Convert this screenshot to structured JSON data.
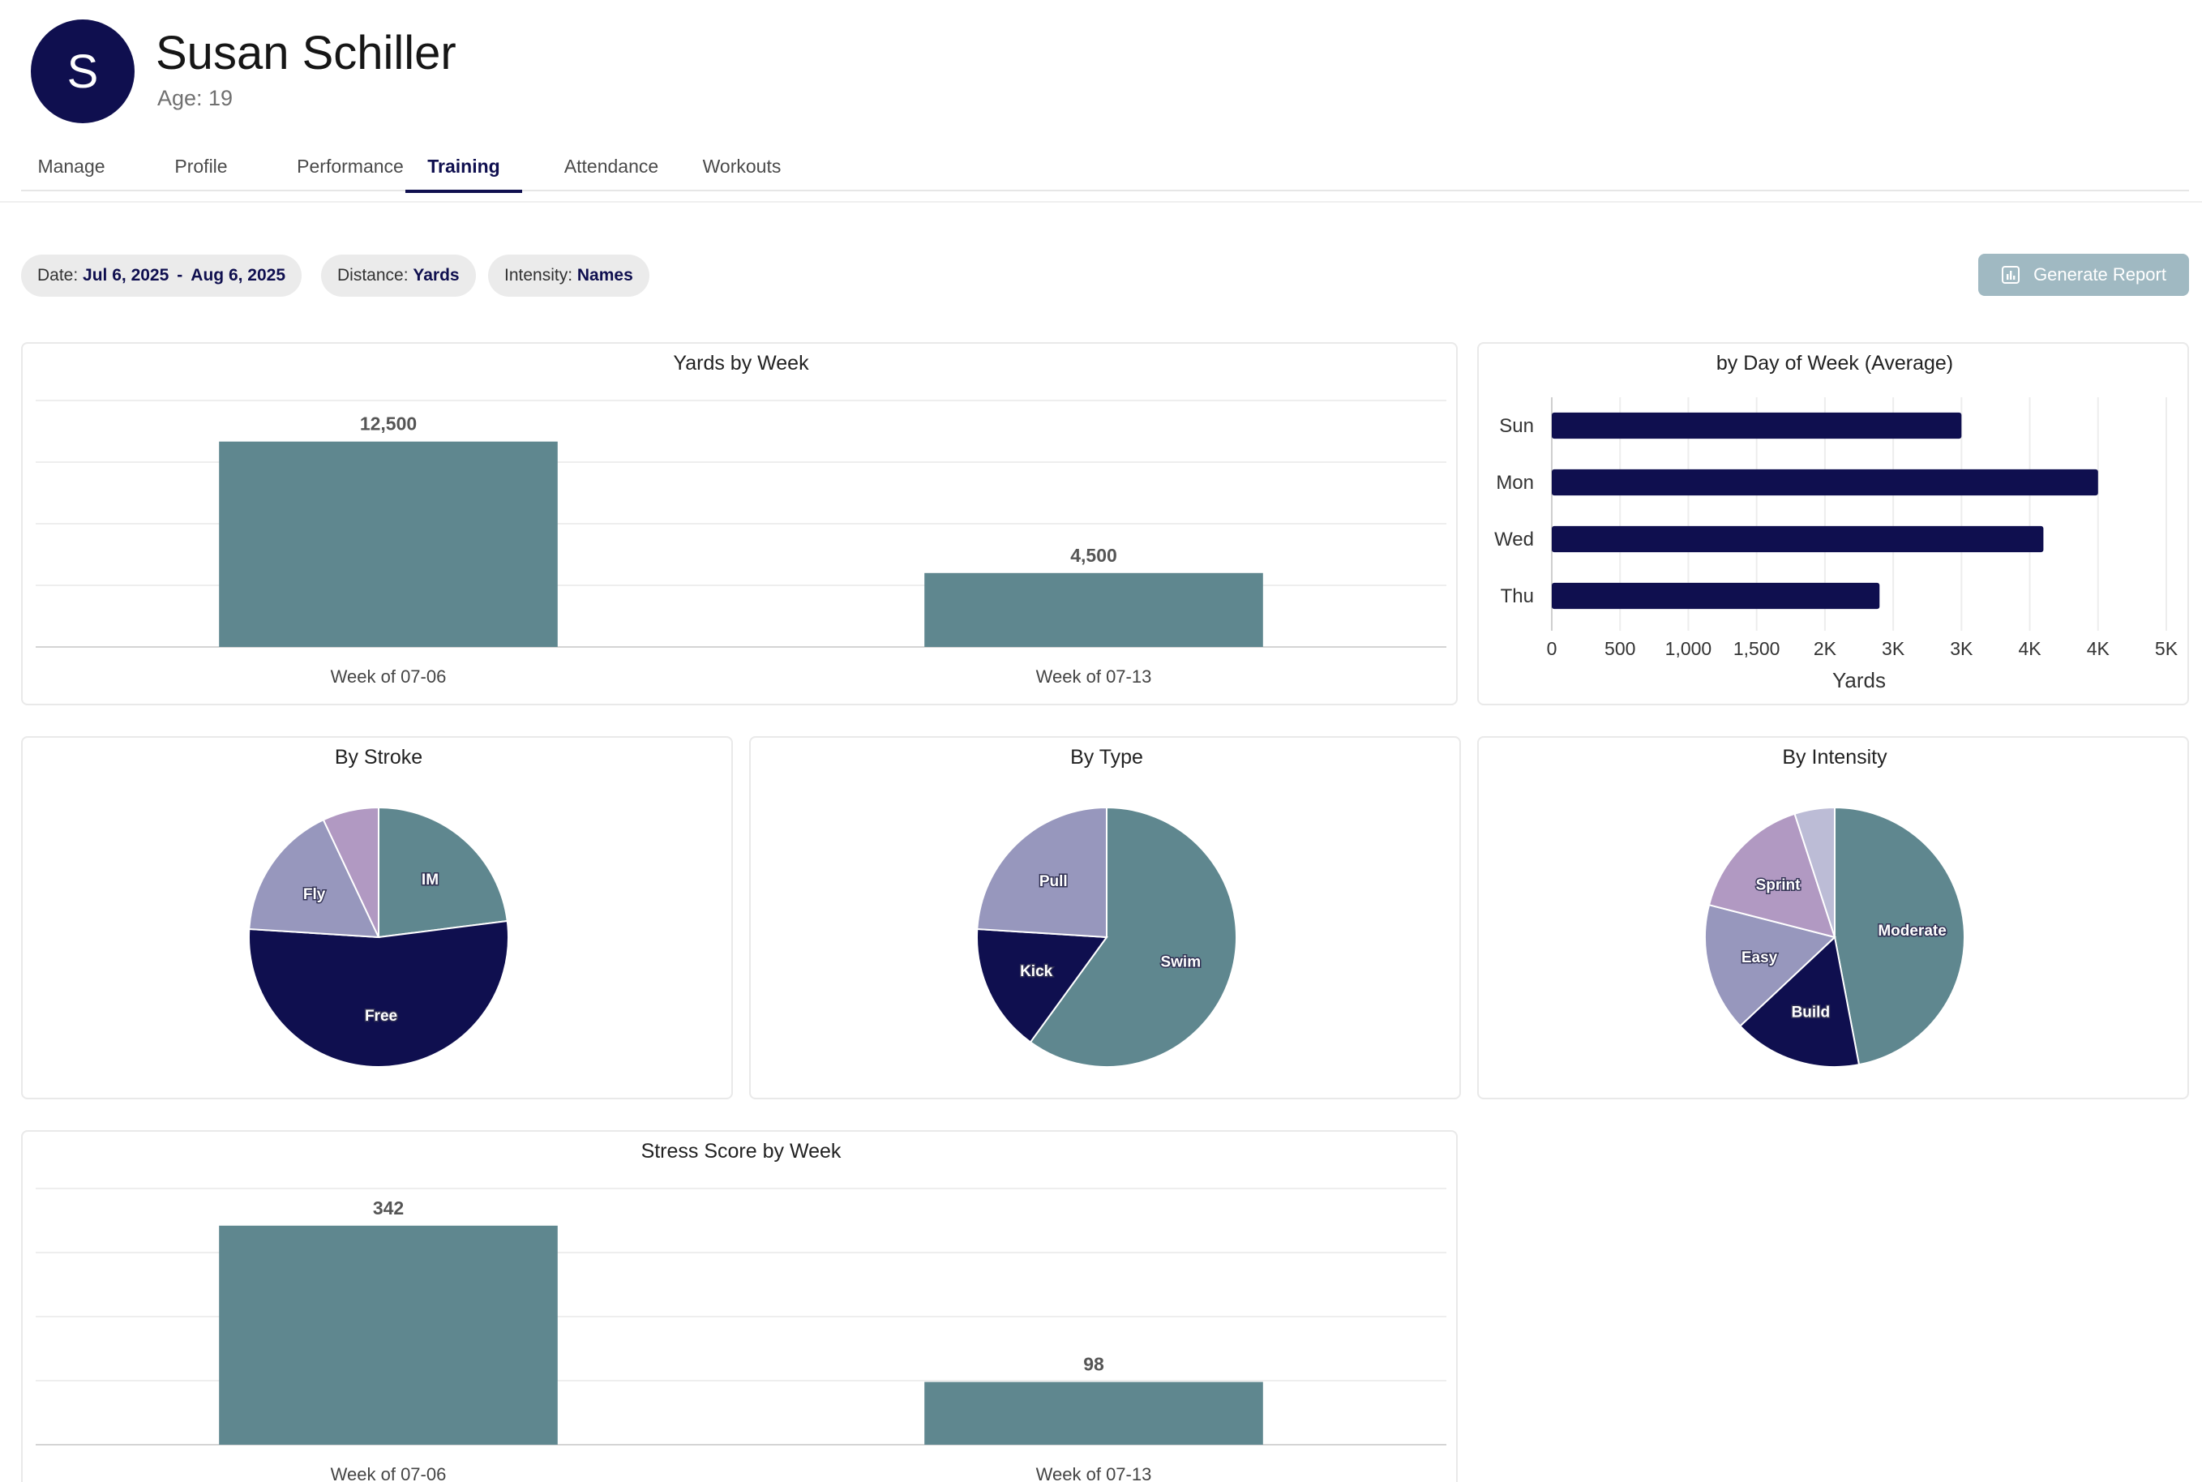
{
  "athlete": {
    "avatar_letter": "S",
    "name": "Susan Schiller",
    "age": "Age: 19"
  },
  "tabs": [
    {
      "label": "Manage"
    },
    {
      "label": "Profile"
    },
    {
      "label": "Performance"
    },
    {
      "label": "Training",
      "active": true
    },
    {
      "label": "Attendance"
    },
    {
      "label": "Workouts"
    }
  ],
  "filters": {
    "date": {
      "label": "Date:",
      "start": "Jul 6, 2025",
      "separator": "-",
      "end": "Aug 6, 2025"
    },
    "distance": {
      "label": "Distance:",
      "value": "Yards"
    },
    "intensity": {
      "label": "Intensity:",
      "value": "Names"
    }
  },
  "actions": {
    "generate_report": "Generate Report",
    "report_icon": "bar-chart-icon"
  },
  "colors": {
    "teal": "#5f878f",
    "navy": "#0f0f4f",
    "lavender": "#9797bd",
    "mauve": "#b199c2",
    "lilac": "#bcbcd6",
    "accent": "#0f0f4f"
  },
  "chart_data": [
    {
      "id": "yards_by_week",
      "type": "bar",
      "title": "Yards by Week",
      "categories": [
        "Week of 07-06",
        "Week of 07-13"
      ],
      "values": [
        12500,
        4500
      ],
      "value_labels": [
        "12,500",
        "4,500"
      ],
      "ylim": [
        0,
        15000
      ],
      "grid": true
    },
    {
      "id": "by_day_of_week",
      "type": "bar",
      "orientation": "horizontal",
      "title": "by Day of Week (Average)",
      "categories": [
        "Sun",
        "Mon",
        "Wed",
        "Thu"
      ],
      "values": [
        3000,
        4000,
        3600,
        2400
      ],
      "xlabel": "Yards",
      "xlim": [
        0,
        4500
      ],
      "x_ticks": [
        0,
        500,
        1000,
        1500,
        2000,
        2500,
        3000,
        3500,
        4000,
        4500
      ],
      "x_tick_labels": [
        "0",
        "500",
        "1,000",
        "1,500",
        "2K",
        "3K",
        "3K",
        "4K",
        "4K",
        "5K"
      ],
      "grid": true
    },
    {
      "id": "by_stroke",
      "type": "pie",
      "title": "By Stroke",
      "slices": [
        {
          "label": "IM",
          "value": 23,
          "show_label": true
        },
        {
          "label": "Free",
          "value": 53,
          "show_label": true
        },
        {
          "label": "Fly",
          "value": 17,
          "show_label": true
        },
        {
          "label": "",
          "value": 7,
          "show_label": false
        }
      ]
    },
    {
      "id": "by_type",
      "type": "pie",
      "title": "By Type",
      "slices": [
        {
          "label": "Swim",
          "value": 60,
          "show_label": true
        },
        {
          "label": "Kick",
          "value": 16,
          "show_label": true
        },
        {
          "label": "Pull",
          "value": 24,
          "show_label": true
        }
      ]
    },
    {
      "id": "by_intensity",
      "type": "pie",
      "title": "By Intensity",
      "slices": [
        {
          "label": "Moderate",
          "value": 47,
          "show_label": true
        },
        {
          "label": "Build",
          "value": 16,
          "show_label": true
        },
        {
          "label": "Easy",
          "value": 16,
          "show_label": true
        },
        {
          "label": "Sprint",
          "value": 16,
          "show_label": true
        },
        {
          "label": "",
          "value": 5,
          "show_label": false
        }
      ]
    },
    {
      "id": "stress_by_week",
      "type": "bar",
      "title": "Stress Score by Week",
      "categories": [
        "Week of 07-06",
        "Week of 07-13"
      ],
      "values": [
        342,
        98
      ],
      "value_labels": [
        "342",
        "98"
      ],
      "ylim": [
        0,
        400
      ],
      "grid": true
    }
  ]
}
